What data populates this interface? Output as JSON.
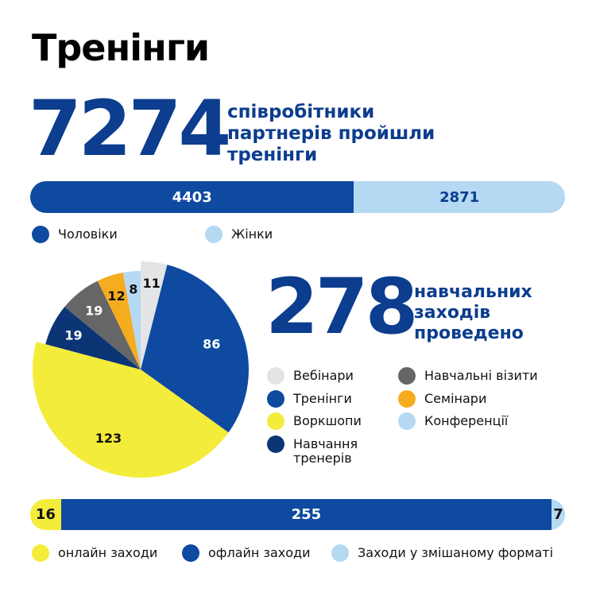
{
  "title": "Тренінги",
  "stat1": {
    "value": "7274",
    "label": "співробітники партнерів пройшли тренінги"
  },
  "stat2": {
    "value": "278",
    "label": "навчальних заходів проведено"
  },
  "colors": {
    "dark_blue": "#0d4aa0",
    "light_blue": "#b5d8f3",
    "yellow": "#f4ec3a",
    "navy": "#0b3575",
    "gray": "#666666",
    "light_gray": "#e3e4e6",
    "orange": "#f6ac1f",
    "text_blue": "#0c3d8e"
  },
  "chart_data": [
    {
      "type": "bar",
      "orientation": "horizontal-stacked",
      "series": [
        {
          "name": "Чоловіки",
          "value": 4403,
          "color": "#0d4aa0",
          "label_color": "#ffffff"
        },
        {
          "name": "Жінки",
          "value": 2871,
          "color": "#b5d8f3",
          "label_color": "#0c3d8e"
        }
      ]
    },
    {
      "type": "pie",
      "slices": [
        {
          "name": "Вебінари",
          "value": 11,
          "color": "#e3e4e6",
          "label_color": "#111111"
        },
        {
          "name": "Тренінги",
          "value": 86,
          "color": "#0d4aa0",
          "label_color": "#ffffff"
        },
        {
          "name": "Воркшопи",
          "value": 123,
          "color": "#f4ec3a",
          "label_color": "#111111"
        },
        {
          "name": "Навчання тренерів",
          "value": 19,
          "color": "#0b3575",
          "label_color": "#ffffff"
        },
        {
          "name": "Навчальні візити",
          "value": 19,
          "color": "#666666",
          "label_color": "#ffffff"
        },
        {
          "name": "Семінари",
          "value": 12,
          "color": "#f6ac1f",
          "label_color": "#111111"
        },
        {
          "name": "Конференції",
          "value": 8,
          "color": "#b5d8f3",
          "label_color": "#111111"
        }
      ]
    },
    {
      "type": "bar",
      "orientation": "horizontal-stacked",
      "series": [
        {
          "name": "онлайн заходи",
          "value": 16,
          "color": "#f4ec3a",
          "label_color": "#111111"
        },
        {
          "name": "офлайн заходи",
          "value": 255,
          "color": "#0d4aa0",
          "label_color": "#ffffff"
        },
        {
          "name": "Заходи у змішаному форматі",
          "value": 7,
          "color": "#b5d8f3",
          "label_color": "#111111"
        }
      ]
    }
  ]
}
